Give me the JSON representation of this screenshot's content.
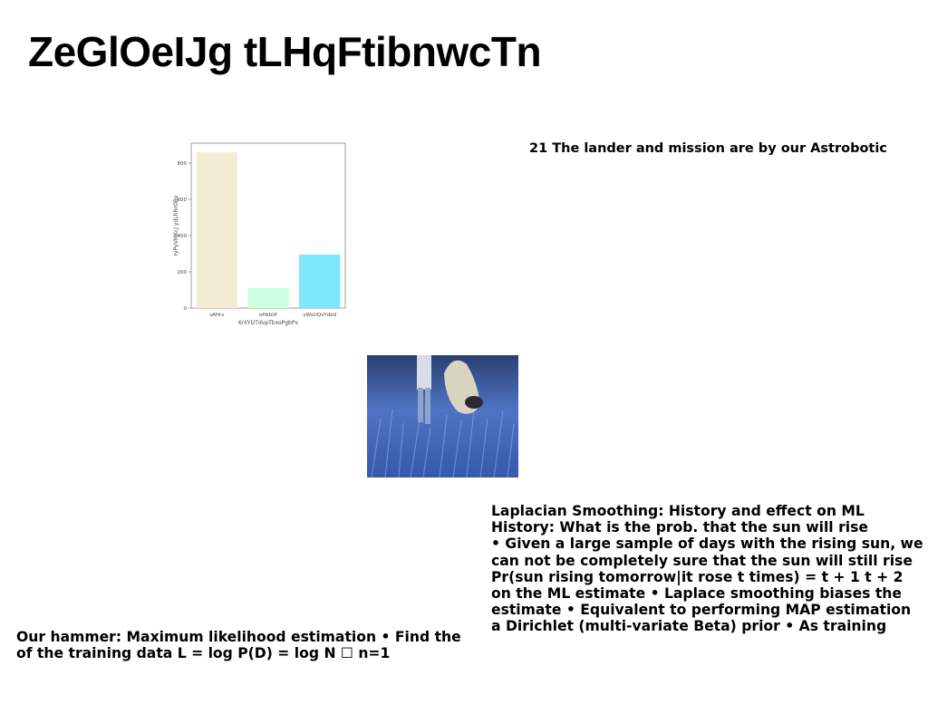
{
  "slide": {
    "title": "ZeGlOeIJg tLHqFtibnwcTn",
    "caption": "21 The lander and mission are by our Astrobotic",
    "right_block": [
      "Laplacian Smoothing: History and effect on ML",
      "History: What is the prob. that the sun will rise",
      "• Given a large sample of days with the rising sun, we",
      "can not be completely sure that the sun will still rise",
      "Pr(sun rising tomorrow|it rose t times) = t + 1 t + 2",
      "on the ML estimate • Laplace smoothing biases the",
      "estimate • Equivalent to performing MAP estimation",
      "a Dirichlet (multi-variate Beta) prior • As training"
    ],
    "left_block": [
      "Our hammer: Maximum likelihood estimation • Find the",
      "of the training data L = log P(D) = log N ☐ n=1"
    ],
    "photo": {
      "description_icon": "photo-icon"
    }
  },
  "chart_data": {
    "type": "bar",
    "categories": [
      "sAHrv",
      "oHkbtP",
      "vWsUQvYded"
    ],
    "values": [
      860,
      110,
      295
    ],
    "colors": [
      "#f3ecd4",
      "#ccffdf",
      "#7de8fb"
    ],
    "xlabel": "KrIiYlzTdvpTbxoPgbPx",
    "ylabel": "ryPyVMKcJ ydLhRrOBv",
    "ylim": [
      0,
      910
    ],
    "yticks": [
      0,
      200,
      400,
      600,
      800
    ],
    "grid": false
  }
}
